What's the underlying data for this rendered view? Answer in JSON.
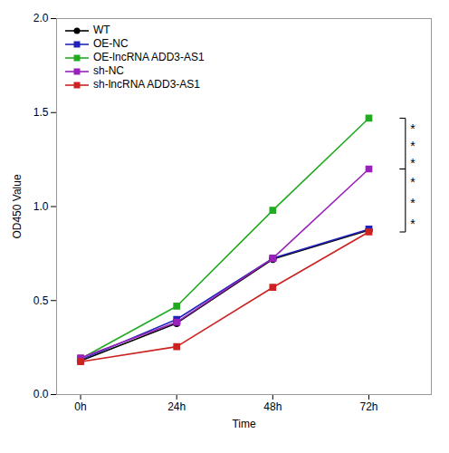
{
  "chart_data": {
    "type": "line",
    "xlabel": "Time",
    "ylabel": "OD450 Value",
    "categories": [
      "0h",
      "24h",
      "48h",
      "72h"
    ],
    "series": [
      {
        "name": "WT",
        "color": "#000000",
        "marker": "circle",
        "values": [
          0.18,
          0.38,
          0.72,
          0.875
        ],
        "errors": [
          0.005,
          0.008,
          0.01,
          0.01
        ]
      },
      {
        "name": "OE-NC",
        "color": "#2222bb",
        "marker": "square",
        "values": [
          0.185,
          0.4,
          0.725,
          0.88
        ],
        "errors": [
          0.005,
          0.008,
          0.01,
          0.01
        ]
      },
      {
        "name": "OE-lncRNA ADD3-AS1",
        "color": "#22aa22",
        "marker": "square",
        "values": [
          0.19,
          0.47,
          0.98,
          1.47
        ],
        "errors": [
          0.005,
          0.01,
          0.012,
          0.012
        ]
      },
      {
        "name": "sh-NC",
        "color": "#9922bb",
        "marker": "square",
        "values": [
          0.195,
          0.385,
          0.725,
          1.2
        ],
        "errors": [
          0.005,
          0.008,
          0.01,
          0.012
        ]
      },
      {
        "name": "sh-lncRNA ADD3-AS1",
        "color": "#cc2222",
        "marker": "square",
        "values": [
          0.175,
          0.255,
          0.57,
          0.865
        ],
        "errors": [
          0.005,
          0.008,
          0.01,
          0.01
        ]
      }
    ],
    "ylim": [
      0.0,
      2.0
    ],
    "yticks": [
      {
        "value": 0,
        "label": "0.0"
      },
      0.5,
      {
        "value": 1,
        "label": "1.0"
      },
      1.5,
      {
        "value": 2,
        "label": "2.0"
      }
    ],
    "legend": "upper left",
    "annotations": [
      {
        "type": "bracket",
        "y_top": 1.47,
        "y_bot": 1.2,
        "text": [
          "*",
          "*",
          "*"
        ]
      },
      {
        "type": "bracket",
        "y_top": 1.2,
        "y_bot": 0.865,
        "text": [
          "*",
          "*",
          "*"
        ]
      }
    ]
  }
}
